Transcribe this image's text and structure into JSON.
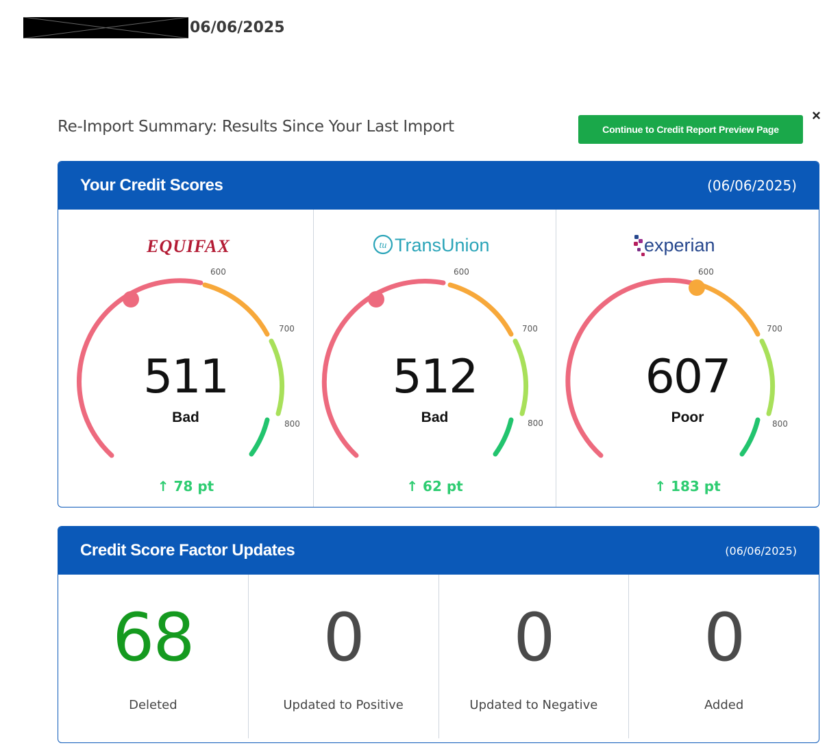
{
  "header": {
    "date": "06/06/2025"
  },
  "summary": {
    "title": "Re-Import Summary: Results Since Your Last Import",
    "continue_label": "Continue to Credit Report Preview Page",
    "close_label": "×"
  },
  "scores_panel": {
    "title": "Your Credit Scores",
    "date": "(06/06/2025)",
    "ticks": {
      "t600": "600",
      "t700": "700",
      "t800": "800"
    },
    "bureaus": [
      {
        "name": "EQUIFAX",
        "score": "511",
        "rating": "Bad",
        "delta": "78 pt",
        "color": "#ed6a7e"
      },
      {
        "name": "TransUnion",
        "score": "512",
        "rating": "Bad",
        "delta": "62 pt",
        "color": "#ed6a7e"
      },
      {
        "name": "experian",
        "score": "607",
        "rating": "Poor",
        "delta": "183 pt",
        "color": "#f7a83a"
      }
    ]
  },
  "factors_panel": {
    "title": "Credit Score Factor Updates",
    "date": "(06/06/2025)",
    "items": [
      {
        "value": "68",
        "label": "Deleted"
      },
      {
        "value": "0",
        "label": "Updated to Positive"
      },
      {
        "value": "0",
        "label": "Updated to Negative"
      },
      {
        "value": "0",
        "label": "Added"
      }
    ]
  },
  "colors": {
    "brand_blue": "#0b59b8",
    "button_green": "#1aa84a",
    "delta_green": "#2ecc71",
    "deleted_green": "#159a1f",
    "gauge_red": "#ed6a7e",
    "gauge_orange": "#f7a83a",
    "gauge_lime": "#a8e05a",
    "gauge_green": "#22c46e"
  }
}
